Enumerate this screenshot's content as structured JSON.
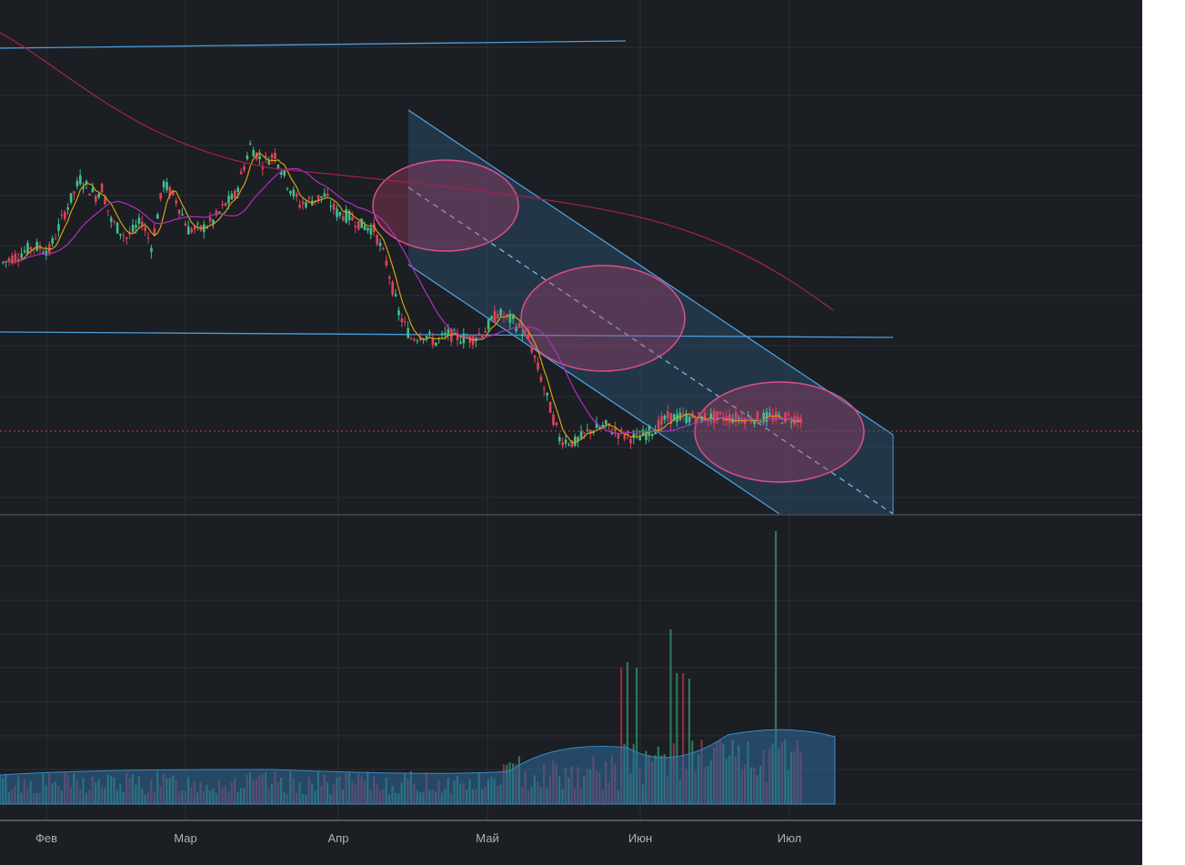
{
  "chart_data": [
    {
      "type": "candlestick",
      "title": "",
      "x_tick_labels": [
        "Фев",
        "Мар",
        "Апр",
        "Май",
        "Июн",
        "Июл"
      ],
      "price_axis": "hidden",
      "grid": true,
      "legend": "none",
      "description_series": {
        "close_path_days": [
          0,
          5,
          10,
          15,
          20,
          25,
          30,
          32,
          35,
          40,
          45,
          48,
          52,
          56,
          60,
          64,
          68,
          72,
          75,
          80,
          84,
          88,
          92,
          96,
          100,
          104,
          108,
          112,
          116,
          120,
          124,
          128,
          132,
          136,
          140,
          144,
          148,
          152,
          156,
          160,
          165,
          170,
          175,
          180,
          185,
          190,
          195,
          200,
          205,
          210,
          215,
          220,
          225,
          230,
          235,
          240,
          245,
          250,
          255,
          258
        ],
        "close_path_level": [
          60,
          62,
          64,
          63,
          72,
          80,
          76,
          78,
          70,
          66,
          70,
          64,
          79,
          75,
          68,
          68,
          70,
          74,
          76,
          88,
          84,
          86,
          79,
          74,
          75,
          76,
          72,
          71,
          69,
          68,
          60,
          48,
          42,
          43,
          41,
          43,
          42,
          42,
          44,
          48,
          46,
          42,
          30,
          18,
          17,
          20,
          21,
          19,
          18,
          20,
          23,
          23,
          23,
          23,
          23,
          23,
          23,
          23,
          23,
          23
        ]
      },
      "overlays": [
        {
          "name": "",
          "kind": "descending-channel",
          "color": "#4a9fe0"
        },
        {
          "name": "",
          "kind": "horizontal-level-upper",
          "color": "#4a9fe0"
        },
        {
          "name": "",
          "kind": "horizontal-level-lower",
          "color": "#4a9fe0"
        },
        {
          "name": "",
          "kind": "consolidation-ellipses",
          "count": 3,
          "color": "#c04070"
        },
        {
          "name": "",
          "kind": "moving-average-fast",
          "color": "#d4a017"
        },
        {
          "name": "",
          "kind": "moving-average-mid",
          "color": "#b030c0"
        },
        {
          "name": "",
          "kind": "moving-average-slow",
          "color": "#a0204a"
        }
      ],
      "colors": {
        "up": "#3fbf8f",
        "down": "#e0415a",
        "background": "#1b1e22",
        "grid": "#2b2f36",
        "channel_fill": "#2a4a66"
      }
    },
    {
      "type": "bar",
      "title": "",
      "series_kind": "volume",
      "spike_days": [
        200,
        202,
        205,
        216,
        218,
        220,
        222,
        250
      ],
      "spike_relative_height": [
        0.5,
        0.52,
        0.5,
        0.64,
        0.48,
        0.48,
        0.46,
        1.0
      ],
      "volume_ma_color": "#2e6b9e"
    }
  ]
}
